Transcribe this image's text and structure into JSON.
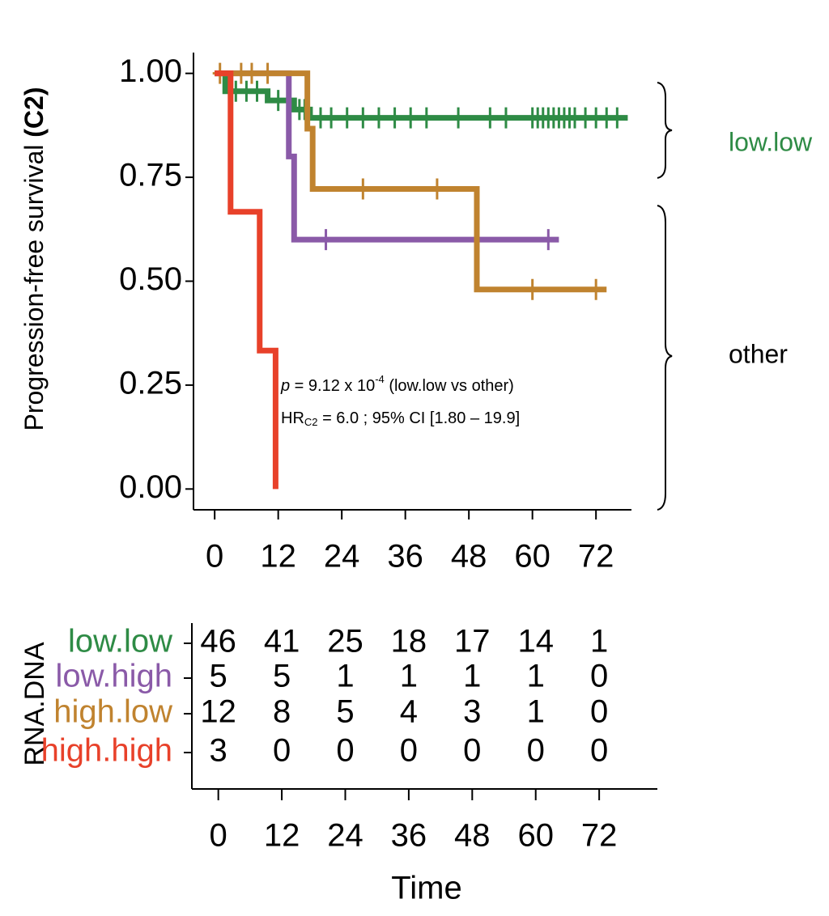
{
  "chart_data": [
    {
      "type": "step",
      "ylabel": "Progression-free survival",
      "ylabel_bold": "(C2)",
      "xlim": [
        -4,
        78.7
      ],
      "ylim": [
        -0.05,
        1.05
      ],
      "xticks": [
        0,
        12,
        24,
        36,
        48,
        60,
        72
      ],
      "yticks": [
        {
          "value": 0,
          "label": "0.00"
        },
        {
          "value": 0.25,
          "label": "0.25"
        },
        {
          "value": 0.5,
          "label": "0.50"
        },
        {
          "value": 0.75,
          "label": "0.75"
        },
        {
          "value": 1,
          "label": "1.00"
        }
      ],
      "series": [
        {
          "name": "low.low",
          "color": "#2e8b45",
          "x": [
            0,
            2,
            10,
            15,
            18,
            78
          ],
          "values": [
            1,
            0.957,
            0.935,
            0.913,
            0.893,
            0.893
          ],
          "censor_x": [
            4,
            6,
            8,
            12,
            14,
            16,
            17,
            20,
            22,
            25,
            28,
            31,
            34,
            37,
            40,
            46,
            52,
            55,
            60,
            61,
            62,
            63,
            64,
            65,
            66,
            67,
            68,
            70,
            72,
            74,
            76
          ],
          "censor_values": [
            0.957,
            0.957,
            0.957,
            0.935,
            0.935,
            0.913,
            0.913,
            0.893,
            0.893,
            0.893,
            0.893,
            0.893,
            0.893,
            0.893,
            0.893,
            0.893,
            0.893,
            0.893,
            0.893,
            0.893,
            0.893,
            0.893,
            0.893,
            0.893,
            0.893,
            0.893,
            0.893,
            0.893,
            0.893,
            0.893,
            0.893
          ]
        },
        {
          "name": "low.high",
          "color": "#8a5aa8",
          "x": [
            0,
            14,
            15,
            65
          ],
          "values": [
            1,
            0.8,
            0.6,
            0.6
          ],
          "censor_x": [
            21,
            63
          ],
          "censor_values": [
            0.6,
            0.6
          ]
        },
        {
          "name": "high.low",
          "color": "#c0832f",
          "x": [
            0,
            17.5,
            18.5,
            49.5,
            74
          ],
          "values": [
            1,
            0.867,
            0.722,
            0.48,
            0.48
          ],
          "censor_x": [
            1,
            5,
            7,
            10,
            28,
            42,
            60,
            72
          ],
          "censor_values": [
            1,
            1,
            1,
            1,
            0.722,
            0.722,
            0.48,
            0.48
          ]
        },
        {
          "name": "high.high",
          "color": "#e8412a",
          "x": [
            0,
            3,
            8.5,
            11.5
          ],
          "values": [
            1,
            0.667,
            0.333,
            0
          ],
          "censor_x": [],
          "censor_values": []
        }
      ],
      "annotation": {
        "p_symbol": "p",
        "p_text": " = 9.12 x 10",
        "p_exponent": "-4",
        "p_tail": " (low.low vs other)",
        "hr": "HR",
        "hr_sub": "C2",
        "hr_text": " = 6.0 ; 95% CI [1.80 – 19.9]"
      },
      "groups": [
        {
          "label": "low.low",
          "color": "#2e8b45"
        },
        {
          "label": "other",
          "color": "#000000"
        }
      ]
    },
    {
      "type": "risk-table",
      "ylabel": "RNA.DNA",
      "xlabel": "Time",
      "xlim": [
        -5,
        83
      ],
      "xticks": [
        0,
        12,
        24,
        36,
        48,
        60,
        72
      ],
      "series": [
        {
          "name": "low.low",
          "color": "#2e8b45",
          "values": [
            46,
            41,
            25,
            18,
            17,
            14,
            1
          ]
        },
        {
          "name": "low.high",
          "color": "#8a5aa8",
          "values": [
            5,
            5,
            1,
            1,
            1,
            1,
            0
          ]
        },
        {
          "name": "high.low",
          "color": "#c0832f",
          "values": [
            12,
            8,
            5,
            4,
            3,
            1,
            0
          ]
        },
        {
          "name": "high.high",
          "color": "#e8412a",
          "values": [
            3,
            0,
            0,
            0,
            0,
            0,
            0
          ]
        }
      ]
    }
  ]
}
